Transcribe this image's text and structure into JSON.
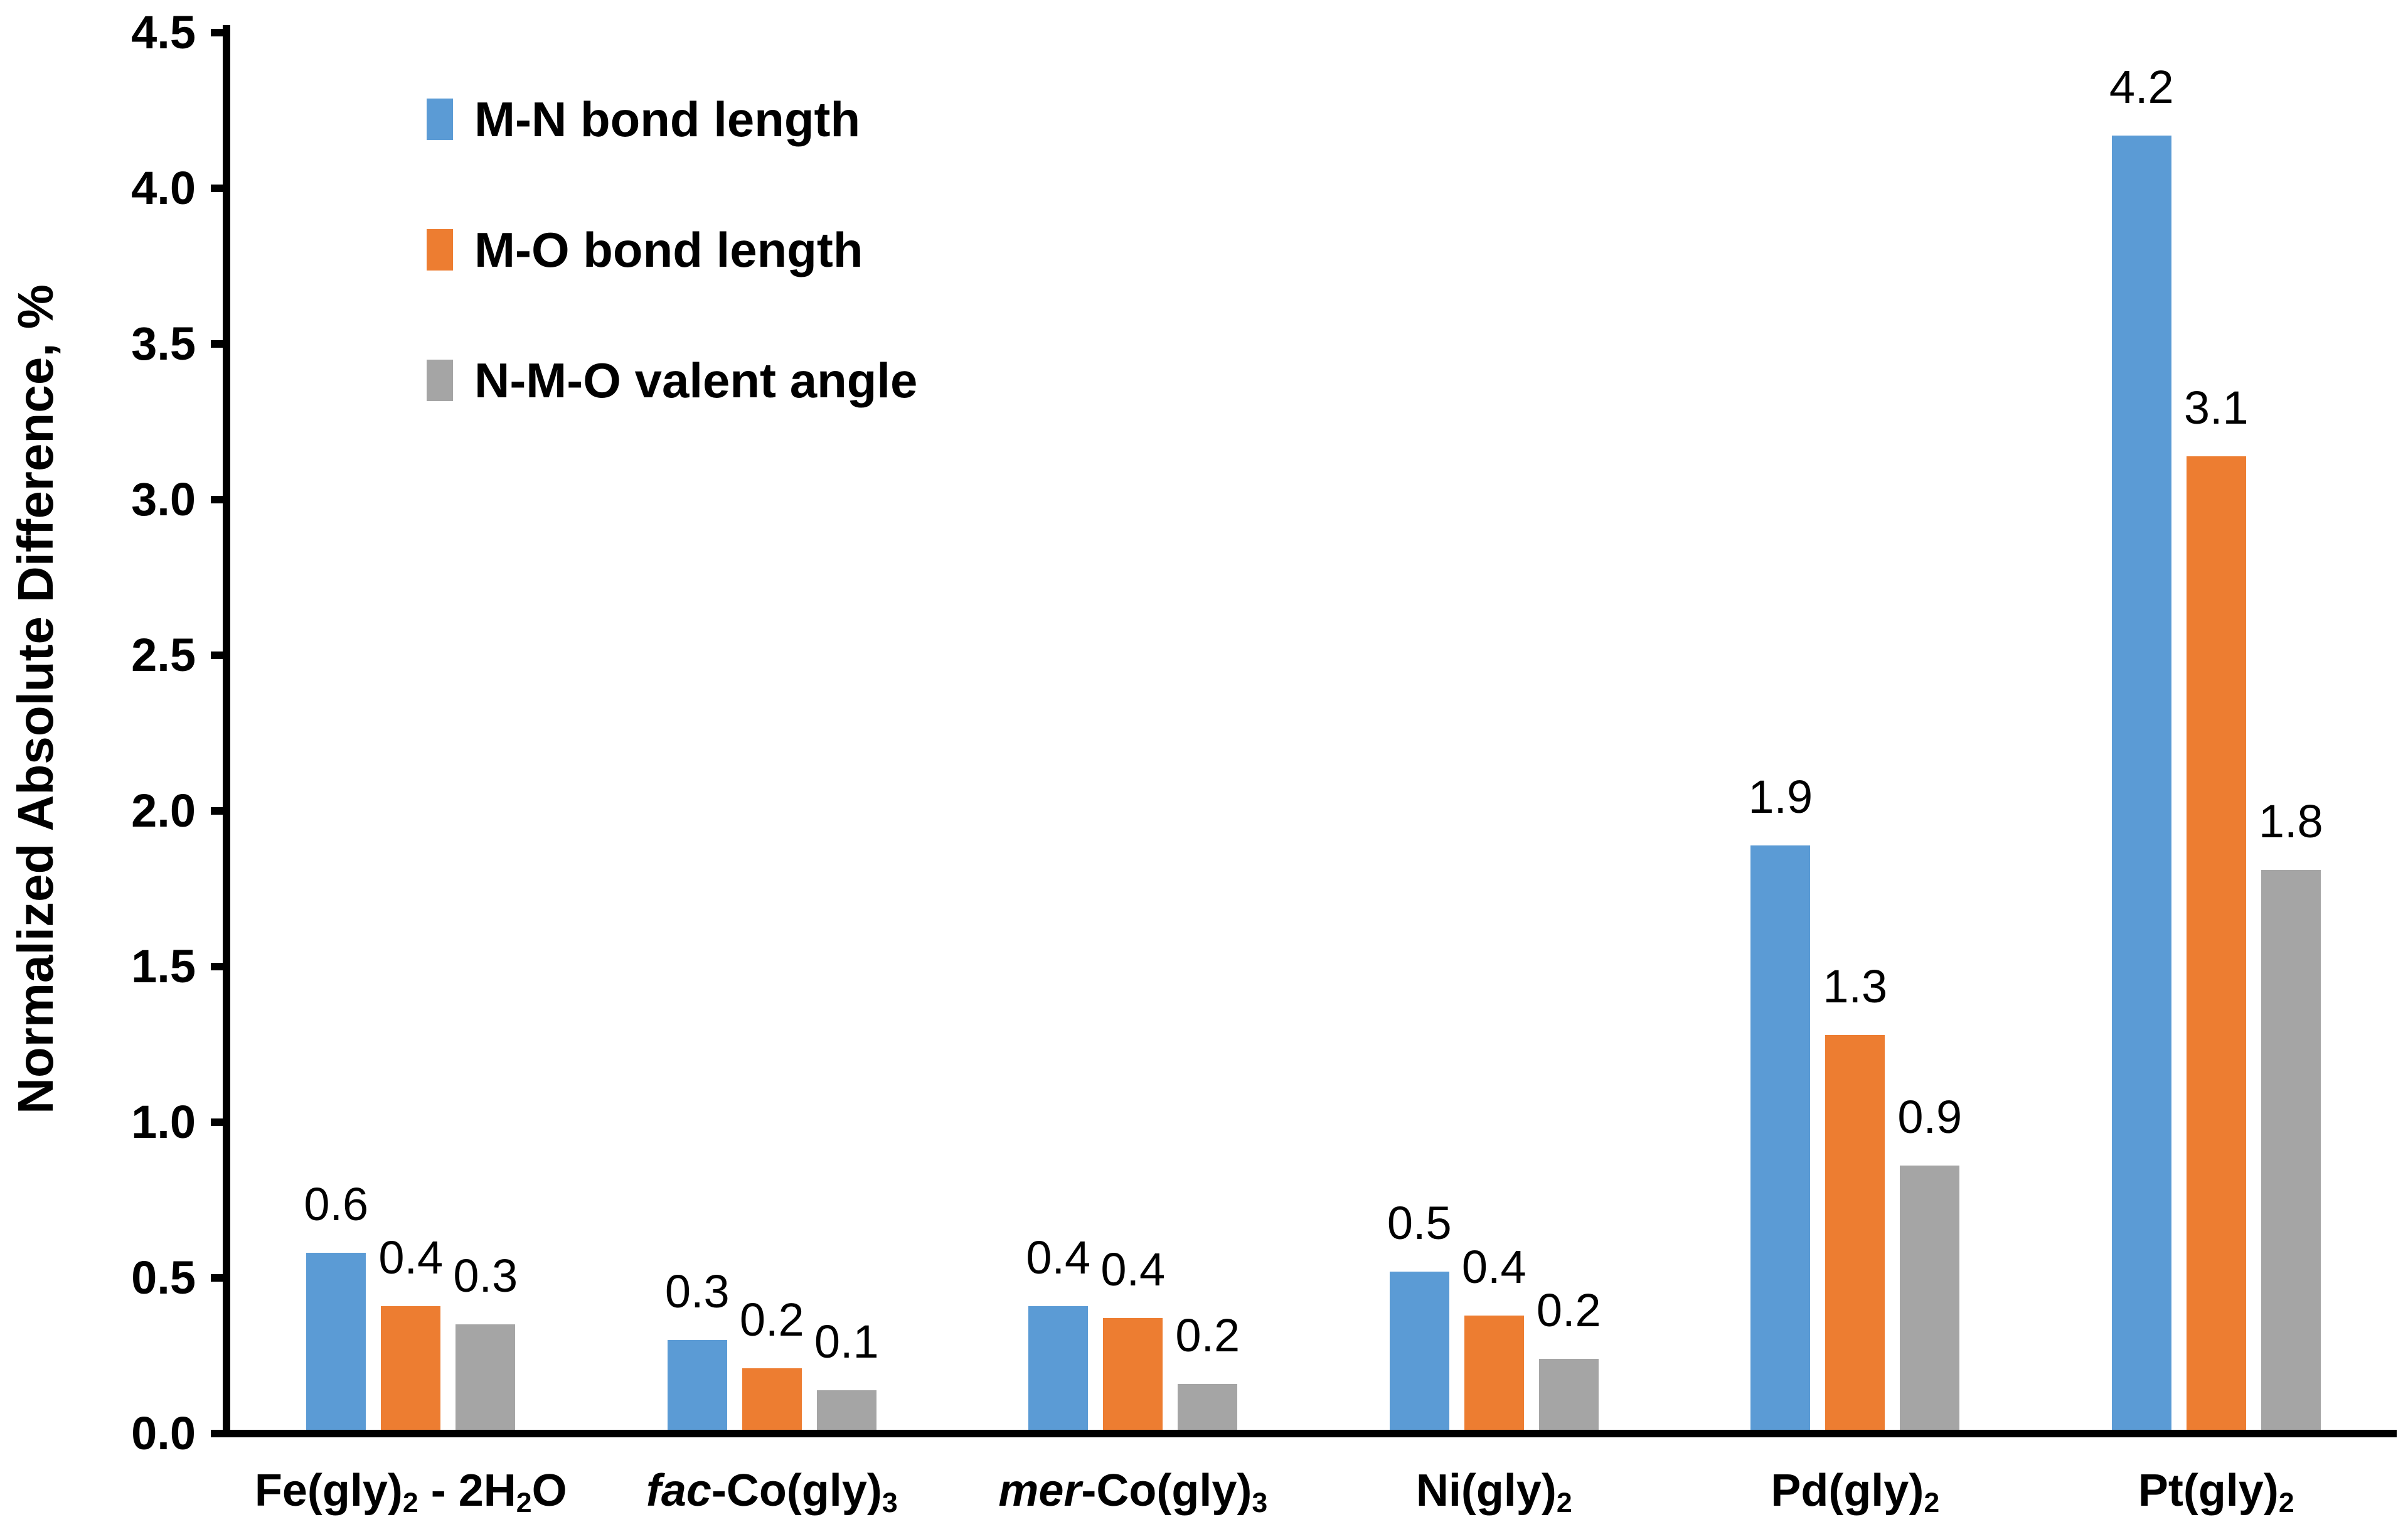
{
  "figure": {
    "background": "#ffffff",
    "axis_color": "#000000"
  },
  "y_axis": {
    "title": "Normalized Absolute Difference, %",
    "tick_labels": [
      "0.0",
      "0.5",
      "1.0",
      "1.5",
      "2.0",
      "2.5",
      "3.0",
      "3.5",
      "4.0",
      "4.5"
    ],
    "min": 0.0,
    "max": 4.5,
    "step": 0.5
  },
  "legend": {
    "position": "upper-left-inside",
    "items": [
      {
        "label": "M-N bond length",
        "color": "#5B9BD5"
      },
      {
        "label": "M-O bond length",
        "color": "#ED7D31"
      },
      {
        "label": "N-M-O valent angle",
        "color": "#A5A5A5"
      }
    ]
  },
  "chart_data": {
    "type": "bar",
    "title": "",
    "xlabel": "",
    "ylabel": "Normalized Absolute Difference, %",
    "ylim": [
      0,
      4.5
    ],
    "ytick_step": 0.5,
    "grid": false,
    "legend_position": "upper-left-inside",
    "categories": [
      "Fe(gly)₂ - 2H₂O",
      "fac-Co(gly)₃",
      "mer-Co(gly)₃",
      "Ni(gly)₂",
      "Pd(gly)₂",
      "Pt(gly)₂"
    ],
    "category_runs": [
      [
        {
          "t": "Fe(gly)"
        },
        {
          "t": "2",
          "sub": true
        },
        {
          "t": " - 2H"
        },
        {
          "t": "2",
          "sub": true
        },
        {
          "t": "O"
        }
      ],
      [
        {
          "t": "fac",
          "italic": true
        },
        {
          "t": "-Co(gly)"
        },
        {
          "t": "3",
          "sub": true
        }
      ],
      [
        {
          "t": "mer",
          "italic": true
        },
        {
          "t": "-Co(gly)"
        },
        {
          "t": "3",
          "sub": true
        }
      ],
      [
        {
          "t": "Ni(gly)"
        },
        {
          "t": "2",
          "sub": true
        }
      ],
      [
        {
          "t": "Pd(gly)"
        },
        {
          "t": "2",
          "sub": true
        }
      ],
      [
        {
          "t": "Pt(gly)"
        },
        {
          "t": "2",
          "sub": true
        }
      ]
    ],
    "series": [
      {
        "name": "M-N bond length",
        "color": "#5B9BD5",
        "values": [
          0.6,
          0.3,
          0.4,
          0.5,
          1.9,
          4.2
        ],
        "labels": [
          "0.6",
          "0.3",
          "0.4",
          "0.5",
          "1.9",
          "4.2"
        ],
        "bar_heights": [
          0.58,
          0.3,
          0.41,
          0.52,
          1.89,
          4.17
        ]
      },
      {
        "name": "M-O bond length",
        "color": "#ED7D31",
        "values": [
          0.4,
          0.2,
          0.4,
          0.4,
          1.3,
          3.1
        ],
        "labels": [
          "0.4",
          "0.2",
          "0.4",
          "0.4",
          "1.3",
          "3.1"
        ],
        "bar_heights": [
          0.41,
          0.21,
          0.37,
          0.38,
          1.28,
          3.14
        ]
      },
      {
        "name": "N-M-O valent angle",
        "color": "#A5A5A5",
        "values": [
          0.3,
          0.1,
          0.2,
          0.2,
          0.9,
          1.8
        ],
        "labels": [
          "0.3",
          "0.1",
          "0.2",
          "0.2",
          "0.9",
          "1.8"
        ],
        "bar_heights": [
          0.35,
          0.14,
          0.16,
          0.24,
          0.86,
          1.81
        ]
      }
    ]
  }
}
